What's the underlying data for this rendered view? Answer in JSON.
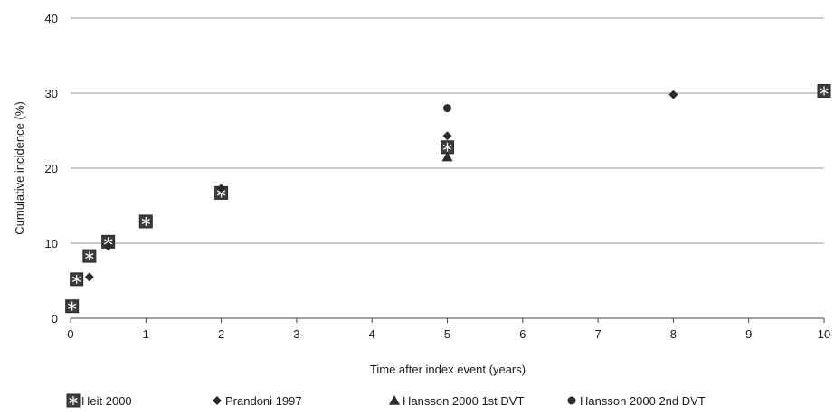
{
  "chart_data": {
    "type": "scatter",
    "title": "",
    "xlabel": "Time after index event (years)",
    "ylabel": "Cumulative incidence (%)",
    "xlim": [
      0,
      10
    ],
    "ylim": [
      0,
      40
    ],
    "xticks": [
      "0",
      "1",
      "2",
      "3",
      "4",
      "5",
      "6",
      "7",
      "8",
      "9",
      "10"
    ],
    "yticks": [
      "0",
      "10",
      "20",
      "30",
      "40"
    ],
    "grid": "horizontal",
    "legend_position": "bottom",
    "series": [
      {
        "name": "Heit 2000",
        "marker": "square-asterisk",
        "points": [
          {
            "x": 0.02,
            "y": 1.6
          },
          {
            "x": 0.08,
            "y": 5.2
          },
          {
            "x": 0.25,
            "y": 8.3
          },
          {
            "x": 0.5,
            "y": 10.2
          },
          {
            "x": 1,
            "y": 12.9
          },
          {
            "x": 2,
            "y": 16.7
          },
          {
            "x": 5,
            "y": 22.8
          },
          {
            "x": 10,
            "y": 30.3
          }
        ]
      },
      {
        "name": "Prandoni 1997",
        "marker": "diamond",
        "points": [
          {
            "x": 0.25,
            "y": 5.5
          },
          {
            "x": 0.5,
            "y": 9.6
          },
          {
            "x": 2,
            "y": 17.3
          },
          {
            "x": 5,
            "y": 24.3
          },
          {
            "x": 8,
            "y": 29.8
          }
        ]
      },
      {
        "name": "Hansson 2000 1st DVT",
        "marker": "triangle",
        "points": [
          {
            "x": 5,
            "y": 21.5
          }
        ]
      },
      {
        "name": "Hansson 2000 2nd DVT",
        "marker": "circle",
        "points": [
          {
            "x": 5,
            "y": 28.0
          }
        ]
      }
    ]
  }
}
